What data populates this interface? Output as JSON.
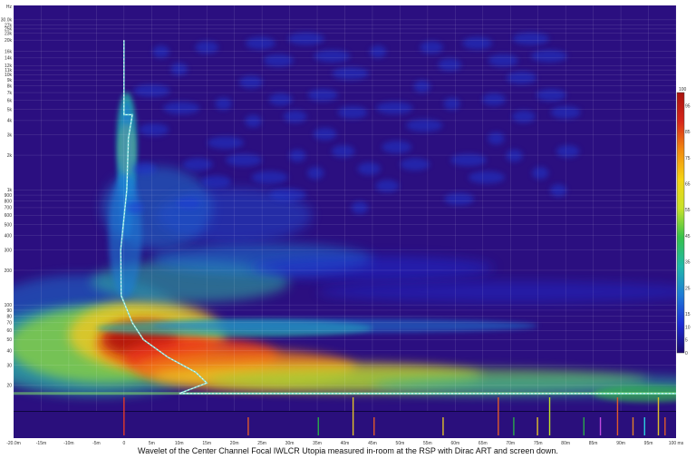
{
  "chart_data": {
    "type": "heatmap",
    "caption": "Wavelet of the Center Channel Focal IWLCR Utopia measured in-room at the RSP with Dirac ART and screen down.",
    "xlabel": "",
    "ylabel": "",
    "x_unit": "ms",
    "xlim": [
      -20,
      100
    ],
    "y_scale": "log",
    "ylim_hz": [
      12,
      40000
    ],
    "x_ticks": [
      {
        "v": -20,
        "label": "-20.0m"
      },
      {
        "v": -15,
        "label": "-15m"
      },
      {
        "v": -10,
        "label": "-10m"
      },
      {
        "v": -5,
        "label": "-5m"
      },
      {
        "v": 0,
        "label": "0"
      },
      {
        "v": 5,
        "label": "5m"
      },
      {
        "v": 10,
        "label": "10m"
      },
      {
        "v": 15,
        "label": "15m"
      },
      {
        "v": 20,
        "label": "20m"
      },
      {
        "v": 25,
        "label": "25m"
      },
      {
        "v": 30,
        "label": "30m"
      },
      {
        "v": 35,
        "label": "35m"
      },
      {
        "v": 40,
        "label": "40m"
      },
      {
        "v": 45,
        "label": "45m"
      },
      {
        "v": 50,
        "label": "50m"
      },
      {
        "v": 55,
        "label": "55m"
      },
      {
        "v": 60,
        "label": "60m"
      },
      {
        "v": 65,
        "label": "65m"
      },
      {
        "v": 70,
        "label": "70m"
      },
      {
        "v": 75,
        "label": "75m"
      },
      {
        "v": 80,
        "label": "80m"
      },
      {
        "v": 85,
        "label": "85m"
      },
      {
        "v": 90,
        "label": "90m"
      },
      {
        "v": 95,
        "label": "95m"
      },
      {
        "v": 100,
        "label": "100 ms"
      }
    ],
    "y_ticks": [
      {
        "v": 20,
        "label": "20"
      },
      {
        "v": 30,
        "label": "30"
      },
      {
        "v": 40,
        "label": "40"
      },
      {
        "v": 50,
        "label": "50"
      },
      {
        "v": 60,
        "label": "60"
      },
      {
        "v": 70,
        "label": "70"
      },
      {
        "v": 80,
        "label": "80"
      },
      {
        "v": 90,
        "label": "90"
      },
      {
        "v": 100,
        "label": "100"
      },
      {
        "v": 200,
        "label": "200"
      },
      {
        "v": 300,
        "label": "300"
      },
      {
        "v": 400,
        "label": "400"
      },
      {
        "v": 500,
        "label": "500"
      },
      {
        "v": 600,
        "label": "600"
      },
      {
        "v": 700,
        "label": "700"
      },
      {
        "v": 800,
        "label": "800"
      },
      {
        "v": 900,
        "label": "900"
      },
      {
        "v": 1000,
        "label": "1k"
      },
      {
        "v": 2000,
        "label": "2k"
      },
      {
        "v": 3000,
        "label": "3k"
      },
      {
        "v": 4000,
        "label": "4k"
      },
      {
        "v": 5000,
        "label": "5k"
      },
      {
        "v": 6000,
        "label": "6k"
      },
      {
        "v": 7000,
        "label": "7k"
      },
      {
        "v": 8000,
        "label": "8k"
      },
      {
        "v": 9000,
        "label": "9k"
      },
      {
        "v": 10000,
        "label": "10k"
      },
      {
        "v": 11000,
        "label": "11k"
      },
      {
        "v": 12000,
        "label": "12k"
      },
      {
        "v": 14000,
        "label": "14k"
      },
      {
        "v": 16000,
        "label": "16k"
      },
      {
        "v": 20000,
        "label": "20k"
      },
      {
        "v": 23000,
        "label": "23k"
      },
      {
        "v": 25000,
        "label": "25k"
      },
      {
        "v": 27000,
        "label": "27k"
      },
      {
        "v": 30000,
        "label": "30.0k"
      },
      {
        "v": 40000,
        "label": "Hz"
      }
    ],
    "colorbar": {
      "min": 0,
      "max": 100,
      "ticks": [
        0,
        5,
        10,
        15,
        25,
        35,
        45,
        55,
        65,
        75,
        85,
        95
      ],
      "top_label": "100",
      "stops": [
        "#1c0a6e",
        "#1c2bd4",
        "#1e7bd6",
        "#20b8a8",
        "#36c24a",
        "#c8e22a",
        "#f5d313",
        "#f28a10",
        "#d7261a",
        "#a8140f"
      ]
    },
    "energy_decay_curve": {
      "color": "#7ee8e0",
      "points": [
        {
          "ms": 0,
          "hz": 20000
        },
        {
          "ms": 0,
          "hz": 4500
        },
        {
          "ms": 1.5,
          "hz": 4500
        },
        {
          "ms": 0.8,
          "hz": 2800
        },
        {
          "ms": 0.5,
          "hz": 1000
        },
        {
          "ms": -0.6,
          "hz": 300
        },
        {
          "ms": -0.5,
          "hz": 120
        },
        {
          "ms": 1.5,
          "hz": 70
        },
        {
          "ms": 3.5,
          "hz": 50
        },
        {
          "ms": 8,
          "hz": 35
        },
        {
          "ms": 13,
          "hz": 26
        },
        {
          "ms": 15,
          "hz": 21
        },
        {
          "ms": 10,
          "hz": 17
        },
        {
          "ms": 100,
          "hz": 17
        }
      ]
    },
    "event_markers": [
      {
        "ms": 0,
        "color": "#e03a2a"
      },
      {
        "ms": 22.5,
        "color": "#e05a2a"
      },
      {
        "ms": 35.2,
        "color": "#2aa84a"
      },
      {
        "ms": 41.5,
        "color": "#e0c02a"
      },
      {
        "ms": 45.3,
        "color": "#e05a2a"
      },
      {
        "ms": 57.8,
        "color": "#e0c02a"
      },
      {
        "ms": 67.8,
        "color": "#e05a2a"
      },
      {
        "ms": 70.6,
        "color": "#2aa84a"
      },
      {
        "ms": 74.9,
        "color": "#e0c02a"
      },
      {
        "ms": 77.1,
        "color": "#c0e02a"
      },
      {
        "ms": 83.3,
        "color": "#2aa84a"
      },
      {
        "ms": 86.3,
        "color": "#c04ae0"
      },
      {
        "ms": 89.4,
        "color": "#e05a2a"
      },
      {
        "ms": 92.2,
        "color": "#e0802a"
      },
      {
        "ms": 94.3,
        "color": "#2ad0e0"
      },
      {
        "ms": 96.8,
        "color": "#e0c02a"
      },
      {
        "ms": 98.0,
        "color": "#e05a2a"
      }
    ]
  }
}
